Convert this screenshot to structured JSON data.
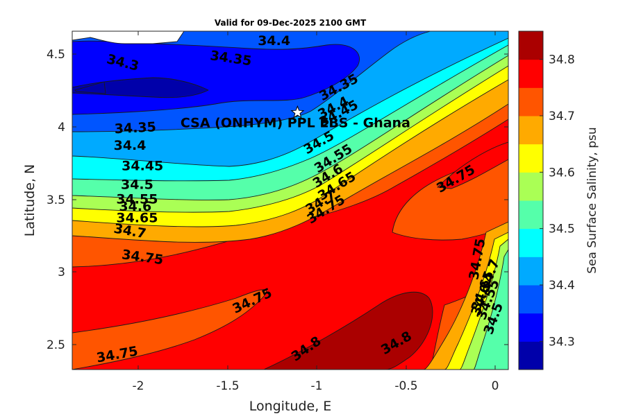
{
  "chart_data": {
    "type": "contourf",
    "title": "Valid for 09-Dec-2025 2100 GMT",
    "xlabel": "Longitude, E",
    "ylabel": "Latitude, N",
    "colorbar_label": "Sea Surface Salinity, psu",
    "xlim": [
      -2.35,
      0.07
    ],
    "ylim": [
      2.33,
      4.66
    ],
    "xticks": [
      "-2",
      "-1.5",
      "-1",
      "-0.5",
      "0"
    ],
    "yticks": [
      "2.5",
      "3",
      "3.5",
      "4",
      "4.5"
    ],
    "colorbar": {
      "range": [
        34.25,
        34.85
      ],
      "ticks": [
        "34.3",
        "34.4",
        "34.5",
        "34.6",
        "34.7",
        "34.8"
      ],
      "levels": [
        34.25,
        34.3,
        34.35,
        34.4,
        34.45,
        34.5,
        34.55,
        34.6,
        34.65,
        34.7,
        34.75,
        34.8,
        34.85
      ],
      "colors": [
        "#0000aa",
        "#0000ff",
        "#0055ff",
        "#00aaff",
        "#00ffff",
        "#55ffaa",
        "#aaff55",
        "#ffff00",
        "#ffaa00",
        "#ff5500",
        "#ff0000",
        "#aa0000"
      ]
    },
    "site": {
      "name": "CSA (ONHYM) PPL EBS  - Ghana",
      "lon": -1.1,
      "lat": 4.1,
      "marker": "white star"
    },
    "contour_labels": [
      {
        "text": "34.4",
        "lon": -1.23,
        "lat": 4.59,
        "angle": 0
      },
      {
        "text": "34.35",
        "lon": -1.47,
        "lat": 4.47,
        "angle": 8
      },
      {
        "text": "34.3",
        "lon": -2.07,
        "lat": 4.44,
        "angle": 14
      },
      {
        "text": "34.35",
        "lon": -0.87,
        "lat": 4.27,
        "angle": -28
      },
      {
        "text": "34.4",
        "lon": -0.9,
        "lat": 4.13,
        "angle": -28
      },
      {
        "text": "34.45",
        "lon": -0.87,
        "lat": 4.09,
        "angle": -28
      },
      {
        "text": "34.35",
        "lon": -2.0,
        "lat": 3.99,
        "angle": -3
      },
      {
        "text": "34.4",
        "lon": -2.03,
        "lat": 3.87,
        "angle": 0
      },
      {
        "text": "34.5",
        "lon": -0.98,
        "lat": 3.89,
        "angle": -30
      },
      {
        "text": "34.45",
        "lon": -1.96,
        "lat": 3.73,
        "angle": 0
      },
      {
        "text": "34.55",
        "lon": -0.9,
        "lat": 3.78,
        "angle": -32
      },
      {
        "text": "34.6",
        "lon": -0.93,
        "lat": 3.66,
        "angle": -32
      },
      {
        "text": "34.5",
        "lon": -1.99,
        "lat": 3.6,
        "angle": 0
      },
      {
        "text": "34.65",
        "lon": -0.88,
        "lat": 3.59,
        "angle": -32
      },
      {
        "text": "34.55",
        "lon": -1.99,
        "lat": 3.5,
        "angle": 0
      },
      {
        "text": "34.7",
        "lon": -0.97,
        "lat": 3.48,
        "angle": -32
      },
      {
        "text": "34.6",
        "lon": -2.0,
        "lat": 3.45,
        "angle": 0
      },
      {
        "text": "34.75",
        "lon": -0.94,
        "lat": 3.43,
        "angle": -32
      },
      {
        "text": "34.65",
        "lon": -1.99,
        "lat": 3.37,
        "angle": 0
      },
      {
        "text": "34.75",
        "lon": -0.22,
        "lat": 3.64,
        "angle": -30
      },
      {
        "text": "34.7",
        "lon": -2.03,
        "lat": 3.28,
        "angle": 10
      },
      {
        "text": "34.75",
        "lon": -0.1,
        "lat": 3.09,
        "angle": -80
      },
      {
        "text": "34.75",
        "lon": -1.96,
        "lat": 3.1,
        "angle": 8
      },
      {
        "text": "34.7",
        "lon": -0.03,
        "lat": 2.98,
        "angle": -70
      },
      {
        "text": "34.65",
        "lon": -0.07,
        "lat": 2.87,
        "angle": -70
      },
      {
        "text": "34.6",
        "lon": -0.08,
        "lat": 2.81,
        "angle": -70
      },
      {
        "text": "34.55",
        "lon": -0.04,
        "lat": 2.81,
        "angle": -70
      },
      {
        "text": "34.5",
        "lon": -0.01,
        "lat": 2.68,
        "angle": -70
      },
      {
        "text": "34.75",
        "lon": -1.35,
        "lat": 2.8,
        "angle": -25
      },
      {
        "text": "34.75",
        "lon": -2.1,
        "lat": 2.43,
        "angle": -10
      },
      {
        "text": "34.8",
        "lon": -1.05,
        "lat": 2.47,
        "angle": -35
      },
      {
        "text": "34.8",
        "lon": -0.55,
        "lat": 2.51,
        "angle": -30
      }
    ]
  }
}
